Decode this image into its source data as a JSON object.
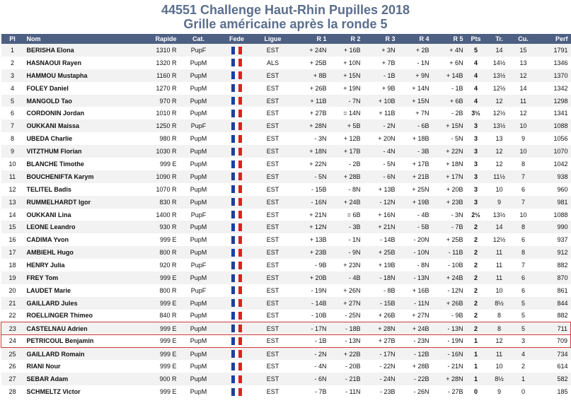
{
  "title_line1": "44551 Challenge Haut-Rhin Pupilles 2018",
  "title_line2": "Grille américaine après la ronde 5",
  "columns": {
    "pl": "Pl",
    "nom": "Nom",
    "rapide": "Rapide",
    "cat": "Cat.",
    "fede": "Fede",
    "ligue": "Ligue",
    "r1": "R 1",
    "r2": "R 2",
    "r3": "R 3",
    "r4": "R 4",
    "r5": "R 5",
    "pts": "Pts",
    "tr": "Tr.",
    "cu": "Cu.",
    "perf": "Perf"
  },
  "flag_colors": {
    "blue": "#1e3f9e",
    "white": "#ffffff",
    "red": "#e02020"
  },
  "highlight_color": "#d23a3a",
  "header_bg": "#4d5f82",
  "rows": [
    {
      "pl": "1",
      "nom": "BERISHA Elona",
      "rapide": "1310 R",
      "cat": "PupF",
      "ligue": "EST",
      "r1": "+ 24N",
      "r2": "+ 16B",
      "r3": "+ 3N",
      "r4": "+ 2B",
      "r5": "+ 4N",
      "pts": "5",
      "tr": "14",
      "cu": "15",
      "perf": "1791"
    },
    {
      "pl": "2",
      "nom": "HASNAOUI Rayen",
      "rapide": "1320 R",
      "cat": "PupM",
      "ligue": "ALS",
      "r1": "+ 25B",
      "r2": "+ 10N",
      "r3": "+ 7B",
      "r4": "- 1N",
      "r5": "+ 6N",
      "pts": "4",
      "tr": "14½",
      "cu": "13",
      "perf": "1346"
    },
    {
      "pl": "3",
      "nom": "HAMMOU Mustapha",
      "rapide": "1160 R",
      "cat": "PupM",
      "ligue": "EST",
      "r1": "+ 8B",
      "r2": "+ 15N",
      "r3": "- 1B",
      "r4": "+ 9N",
      "r5": "+ 14B",
      "pts": "4",
      "tr": "13½",
      "cu": "12",
      "perf": "1370"
    },
    {
      "pl": "4",
      "nom": "FOLEY Daniel",
      "rapide": "1270 R",
      "cat": "PupM",
      "ligue": "EST",
      "r1": "+ 26B",
      "r2": "+ 19N",
      "r3": "+ 9B",
      "r4": "+ 14N",
      "r5": "- 1B",
      "pts": "4",
      "tr": "12½",
      "cu": "14",
      "perf": "1342"
    },
    {
      "pl": "5",
      "nom": "MANGOLD Tao",
      "rapide": "970 R",
      "cat": "PupM",
      "ligue": "EST",
      "r1": "+ 11B",
      "r2": "- 7N",
      "r3": "+ 10B",
      "r4": "+ 15N",
      "r5": "+ 6B",
      "pts": "4",
      "tr": "12",
      "cu": "11",
      "perf": "1298"
    },
    {
      "pl": "6",
      "nom": "CORDONIN Jordan",
      "rapide": "1010 R",
      "cat": "PupM",
      "ligue": "EST",
      "r1": "+ 27B",
      "r2": "= 14N",
      "r3": "+ 11B",
      "r4": "+ 7N",
      "r5": "- 2B",
      "pts": "3½",
      "tr": "12½",
      "cu": "12",
      "perf": "1341"
    },
    {
      "pl": "7",
      "nom": "OUKKANI Maissa",
      "rapide": "1250 R",
      "cat": "PupF",
      "ligue": "EST",
      "r1": "+ 28N",
      "r2": "+ 5B",
      "r3": "- 2N",
      "r4": "- 6B",
      "r5": "+ 15N",
      "pts": "3",
      "tr": "13½",
      "cu": "10",
      "perf": "1088"
    },
    {
      "pl": "8",
      "nom": "UBEDA Charlie",
      "rapide": "980 R",
      "cat": "PupM",
      "ligue": "EST",
      "r1": "- 3N",
      "r2": "+ 12B",
      "r3": "+ 20N",
      "r4": "+ 18B",
      "r5": "- 5N",
      "pts": "3",
      "tr": "13",
      "cu": "9",
      "perf": "1056"
    },
    {
      "pl": "9",
      "nom": "VITZTHUM Florian",
      "rapide": "1030 R",
      "cat": "PupM",
      "ligue": "EST",
      "r1": "+ 18N",
      "r2": "+ 17B",
      "r3": "- 4N",
      "r4": "- 3B",
      "r5": "+ 22N",
      "pts": "3",
      "tr": "12",
      "cu": "10",
      "perf": "1070"
    },
    {
      "pl": "10",
      "nom": "BLANCHE Timothe",
      "rapide": "999 E",
      "cat": "PupM",
      "ligue": "EST",
      "r1": "+ 22N",
      "r2": "- 2B",
      "r3": "- 5N",
      "r4": "+ 17B",
      "r5": "+ 18N",
      "pts": "3",
      "tr": "12",
      "cu": "8",
      "perf": "1042"
    },
    {
      "pl": "11",
      "nom": "BOUCHENIFTA Karym",
      "rapide": "1090 R",
      "cat": "PupM",
      "ligue": "EST",
      "r1": "- 5N",
      "r2": "+ 28B",
      "r3": "- 6N",
      "r4": "+ 21B",
      "r5": "+ 17N",
      "pts": "3",
      "tr": "11½",
      "cu": "7",
      "perf": "938"
    },
    {
      "pl": "12",
      "nom": "TELITEL Badis",
      "rapide": "1070 R",
      "cat": "PupM",
      "ligue": "EST",
      "r1": "- 15B",
      "r2": "- 8N",
      "r3": "+ 13B",
      "r4": "+ 25N",
      "r5": "+ 20B",
      "pts": "3",
      "tr": "10",
      "cu": "6",
      "perf": "960"
    },
    {
      "pl": "13",
      "nom": "RUMMELHARDT Igor",
      "rapide": "830 R",
      "cat": "PupM",
      "ligue": "EST",
      "r1": "- 16N",
      "r2": "+ 24B",
      "r3": "- 12N",
      "r4": "+ 19B",
      "r5": "+ 23B",
      "pts": "3",
      "tr": "9",
      "cu": "7",
      "perf": "981"
    },
    {
      "pl": "14",
      "nom": "OUKKANI Lina",
      "rapide": "1400 R",
      "cat": "PupF",
      "ligue": "EST",
      "r1": "+ 21N",
      "r2": "= 6B",
      "r3": "+ 16N",
      "r4": "- 4B",
      "r5": "- 3N",
      "pts": "2½",
      "tr": "13½",
      "cu": "10",
      "perf": "1088"
    },
    {
      "pl": "15",
      "nom": "LEONE Leandro",
      "rapide": "930 R",
      "cat": "PupM",
      "ligue": "EST",
      "r1": "+ 12N",
      "r2": "- 3B",
      "r3": "+ 21N",
      "r4": "- 5B",
      "r5": "- 7B",
      "pts": "2",
      "tr": "14",
      "cu": "8",
      "perf": "990"
    },
    {
      "pl": "16",
      "nom": "CADIMA Yvon",
      "rapide": "999 E",
      "cat": "PupM",
      "ligue": "EST",
      "r1": "+ 13B",
      "r2": "- 1N",
      "r3": "- 14B",
      "r4": "- 20N",
      "r5": "+ 25B",
      "pts": "2",
      "tr": "12½",
      "cu": "6",
      "perf": "937"
    },
    {
      "pl": "17",
      "nom": "AMBIEHL Hugo",
      "rapide": "800 R",
      "cat": "PupM",
      "ligue": "EST",
      "r1": "+ 23B",
      "r2": "- 9N",
      "r3": "+ 25B",
      "r4": "- 10N",
      "r5": "- 11B",
      "pts": "2",
      "tr": "11",
      "cu": "8",
      "perf": "912"
    },
    {
      "pl": "18",
      "nom": "HENRY Julia",
      "rapide": "920 R",
      "cat": "PupF",
      "ligue": "EST",
      "r1": "- 9B",
      "r2": "+ 23N",
      "r3": "+ 19B",
      "r4": "- 8N",
      "r5": "- 10B",
      "pts": "2",
      "tr": "11",
      "cu": "7",
      "perf": "882"
    },
    {
      "pl": "19",
      "nom": "FREY Tom",
      "rapide": "999 E",
      "cat": "PupM",
      "ligue": "EST",
      "r1": "+ 20B",
      "r2": "- 4B",
      "r3": "- 18N",
      "r4": "- 13N",
      "r5": "+ 24B",
      "pts": "2",
      "tr": "11",
      "cu": "6",
      "perf": "870"
    },
    {
      "pl": "20",
      "nom": "LAUDET Marie",
      "rapide": "800 R",
      "cat": "PupF",
      "ligue": "EST",
      "r1": "- 19N",
      "r2": "+ 26N",
      "r3": "- 8B",
      "r4": "+ 16B",
      "r5": "- 12N",
      "pts": "2",
      "tr": "10",
      "cu": "6",
      "perf": "861"
    },
    {
      "pl": "21",
      "nom": "GAILLARD Jules",
      "rapide": "999 E",
      "cat": "PupM",
      "ligue": "EST",
      "r1": "- 14B",
      "r2": "+ 27N",
      "r3": "- 15B",
      "r4": "- 11N",
      "r5": "+ 26B",
      "pts": "2",
      "tr": "8½",
      "cu": "5",
      "perf": "844"
    },
    {
      "pl": "22",
      "nom": "ROELLINGER Thimeo",
      "rapide": "840 R",
      "cat": "PupM",
      "ligue": "EST",
      "r1": "- 10B",
      "r2": "- 25N",
      "r3": "+ 26B",
      "r4": "+ 27N",
      "r5": "- 9B",
      "pts": "2",
      "tr": "8",
      "cu": "5",
      "perf": "882"
    },
    {
      "pl": "23",
      "nom": "CASTELNAU Adrien",
      "rapide": "999 E",
      "cat": "PupM",
      "ligue": "EST",
      "r1": "- 17N",
      "r2": "- 18B",
      "r3": "+ 28N",
      "r4": "+ 24B",
      "r5": "- 13N",
      "pts": "2",
      "tr": "8",
      "cu": "5",
      "perf": "711",
      "hl": true
    },
    {
      "pl": "24",
      "nom": "PETRICOUL Benjamin",
      "rapide": "999 E",
      "cat": "PupM",
      "ligue": "EST",
      "r1": "- 1B",
      "r2": "- 13N",
      "r3": "+ 27B",
      "r4": "- 23N",
      "r5": "- 19N",
      "pts": "1",
      "tr": "12",
      "cu": "3",
      "perf": "709",
      "hl": true
    },
    {
      "pl": "25",
      "nom": "GAILLARD Romain",
      "rapide": "999 E",
      "cat": "PupM",
      "ligue": "EST",
      "r1": "- 2N",
      "r2": "+ 22B",
      "r3": "- 17N",
      "r4": "- 12B",
      "r5": "- 16N",
      "pts": "1",
      "tr": "11",
      "cu": "4",
      "perf": "734"
    },
    {
      "pl": "26",
      "nom": "RIANI Nour",
      "rapide": "999 E",
      "cat": "PupM",
      "ligue": "EST",
      "r1": "- 4N",
      "r2": "- 20B",
      "r3": "- 22N",
      "r4": "+ 28B",
      "r5": "- 21N",
      "pts": "1",
      "tr": "10",
      "cu": "2",
      "perf": "614"
    },
    {
      "pl": "27",
      "nom": "SEBAR Adam",
      "rapide": "900 R",
      "cat": "PupM",
      "ligue": "EST",
      "r1": "- 6N",
      "r2": "- 21B",
      "r3": "- 24N",
      "r4": "- 22B",
      "r5": "+ 28N",
      "pts": "1",
      "tr": "8½",
      "cu": "1",
      "perf": "582"
    },
    {
      "pl": "28",
      "nom": "SCHMELTZ Victor",
      "rapide": "999 E",
      "cat": "PupM",
      "ligue": "EST",
      "r1": "- 7B",
      "r2": "- 11N",
      "r3": "- 23B",
      "r4": "- 26N",
      "r5": "- 27B",
      "pts": "0",
      "tr": "9",
      "cu": "0",
      "perf": "185"
    }
  ]
}
